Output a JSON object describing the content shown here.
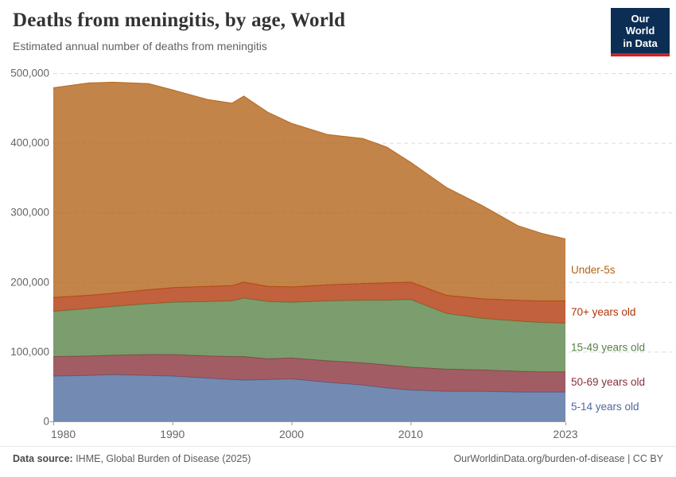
{
  "header": {
    "title": "Deaths from meningitis, by age, World",
    "subtitle": "Estimated annual number of deaths from meningitis",
    "logo": {
      "line1": "Our World",
      "line2": "in Data",
      "bg_color": "#0C2E54",
      "bar_color": "#C7252A"
    }
  },
  "footer": {
    "source_label": "Data source:",
    "source_value": " IHME, Global Burden of Disease (2025)",
    "citation": "OurWorldinData.org/burden-of-disease | CC BY"
  },
  "chart_data": {
    "type": "area",
    "stacked": true,
    "title": "Deaths from meningitis, by age, World",
    "subtitle": "Estimated annual number of deaths from meningitis",
    "grid": "horizontal-dashed",
    "legend_position": "right-of-plot",
    "xlim": [
      1980,
      2023
    ],
    "ylim": [
      0,
      500000
    ],
    "x_ticks": [
      1980,
      1990,
      2000,
      2010,
      2023
    ],
    "y_ticks": [
      0,
      100000,
      200000,
      300000,
      400000,
      500000
    ],
    "fill_opacity": 0.78,
    "axis_color": "#999999",
    "gridline_color": "#dcdcdc",
    "tick_label_color": "#666666",
    "x": [
      1980,
      1983,
      1985,
      1988,
      1990,
      1993,
      1995,
      1996,
      1998,
      2000,
      2003,
      2006,
      2008,
      2010,
      2013,
      2016,
      2019,
      2021,
      2023
    ],
    "series": [
      {
        "name": "5-14 years old",
        "color": "#4C6A9C",
        "values": [
          65000,
          66000,
          67000,
          66000,
          65000,
          62000,
          60000,
          59000,
          60000,
          61000,
          56000,
          52000,
          48000,
          45000,
          43000,
          43000,
          42000,
          42000,
          42000
        ]
      },
      {
        "name": "50-69 years old",
        "color": "#883039",
        "values": [
          28000,
          28000,
          28000,
          30000,
          31000,
          32000,
          33000,
          34000,
          30000,
          30000,
          31000,
          32000,
          33000,
          33000,
          32000,
          31000,
          30000,
          29000,
          29000
        ]
      },
      {
        "name": "15-49 years old",
        "color": "#578145",
        "values": [
          65000,
          68000,
          70000,
          73000,
          75000,
          78000,
          80000,
          84000,
          82000,
          80000,
          86000,
          90000,
          93000,
          97000,
          80000,
          74000,
          72000,
          71000,
          70000
        ]
      },
      {
        "name": "70+ years old",
        "color": "#B13507",
        "values": [
          20000,
          19000,
          19000,
          20000,
          21000,
          22000,
          22000,
          23000,
          22000,
          22000,
          23000,
          24000,
          25000,
          25000,
          26000,
          28000,
          30000,
          31000,
          32000
        ]
      },
      {
        "name": "Under-5s",
        "color": "#B16214",
        "values": [
          301000,
          305000,
          303000,
          296000,
          284000,
          268000,
          262000,
          267000,
          250000,
          235000,
          216000,
          208000,
          195000,
          172000,
          155000,
          134000,
          107000,
          97000,
          89000
        ]
      }
    ]
  }
}
